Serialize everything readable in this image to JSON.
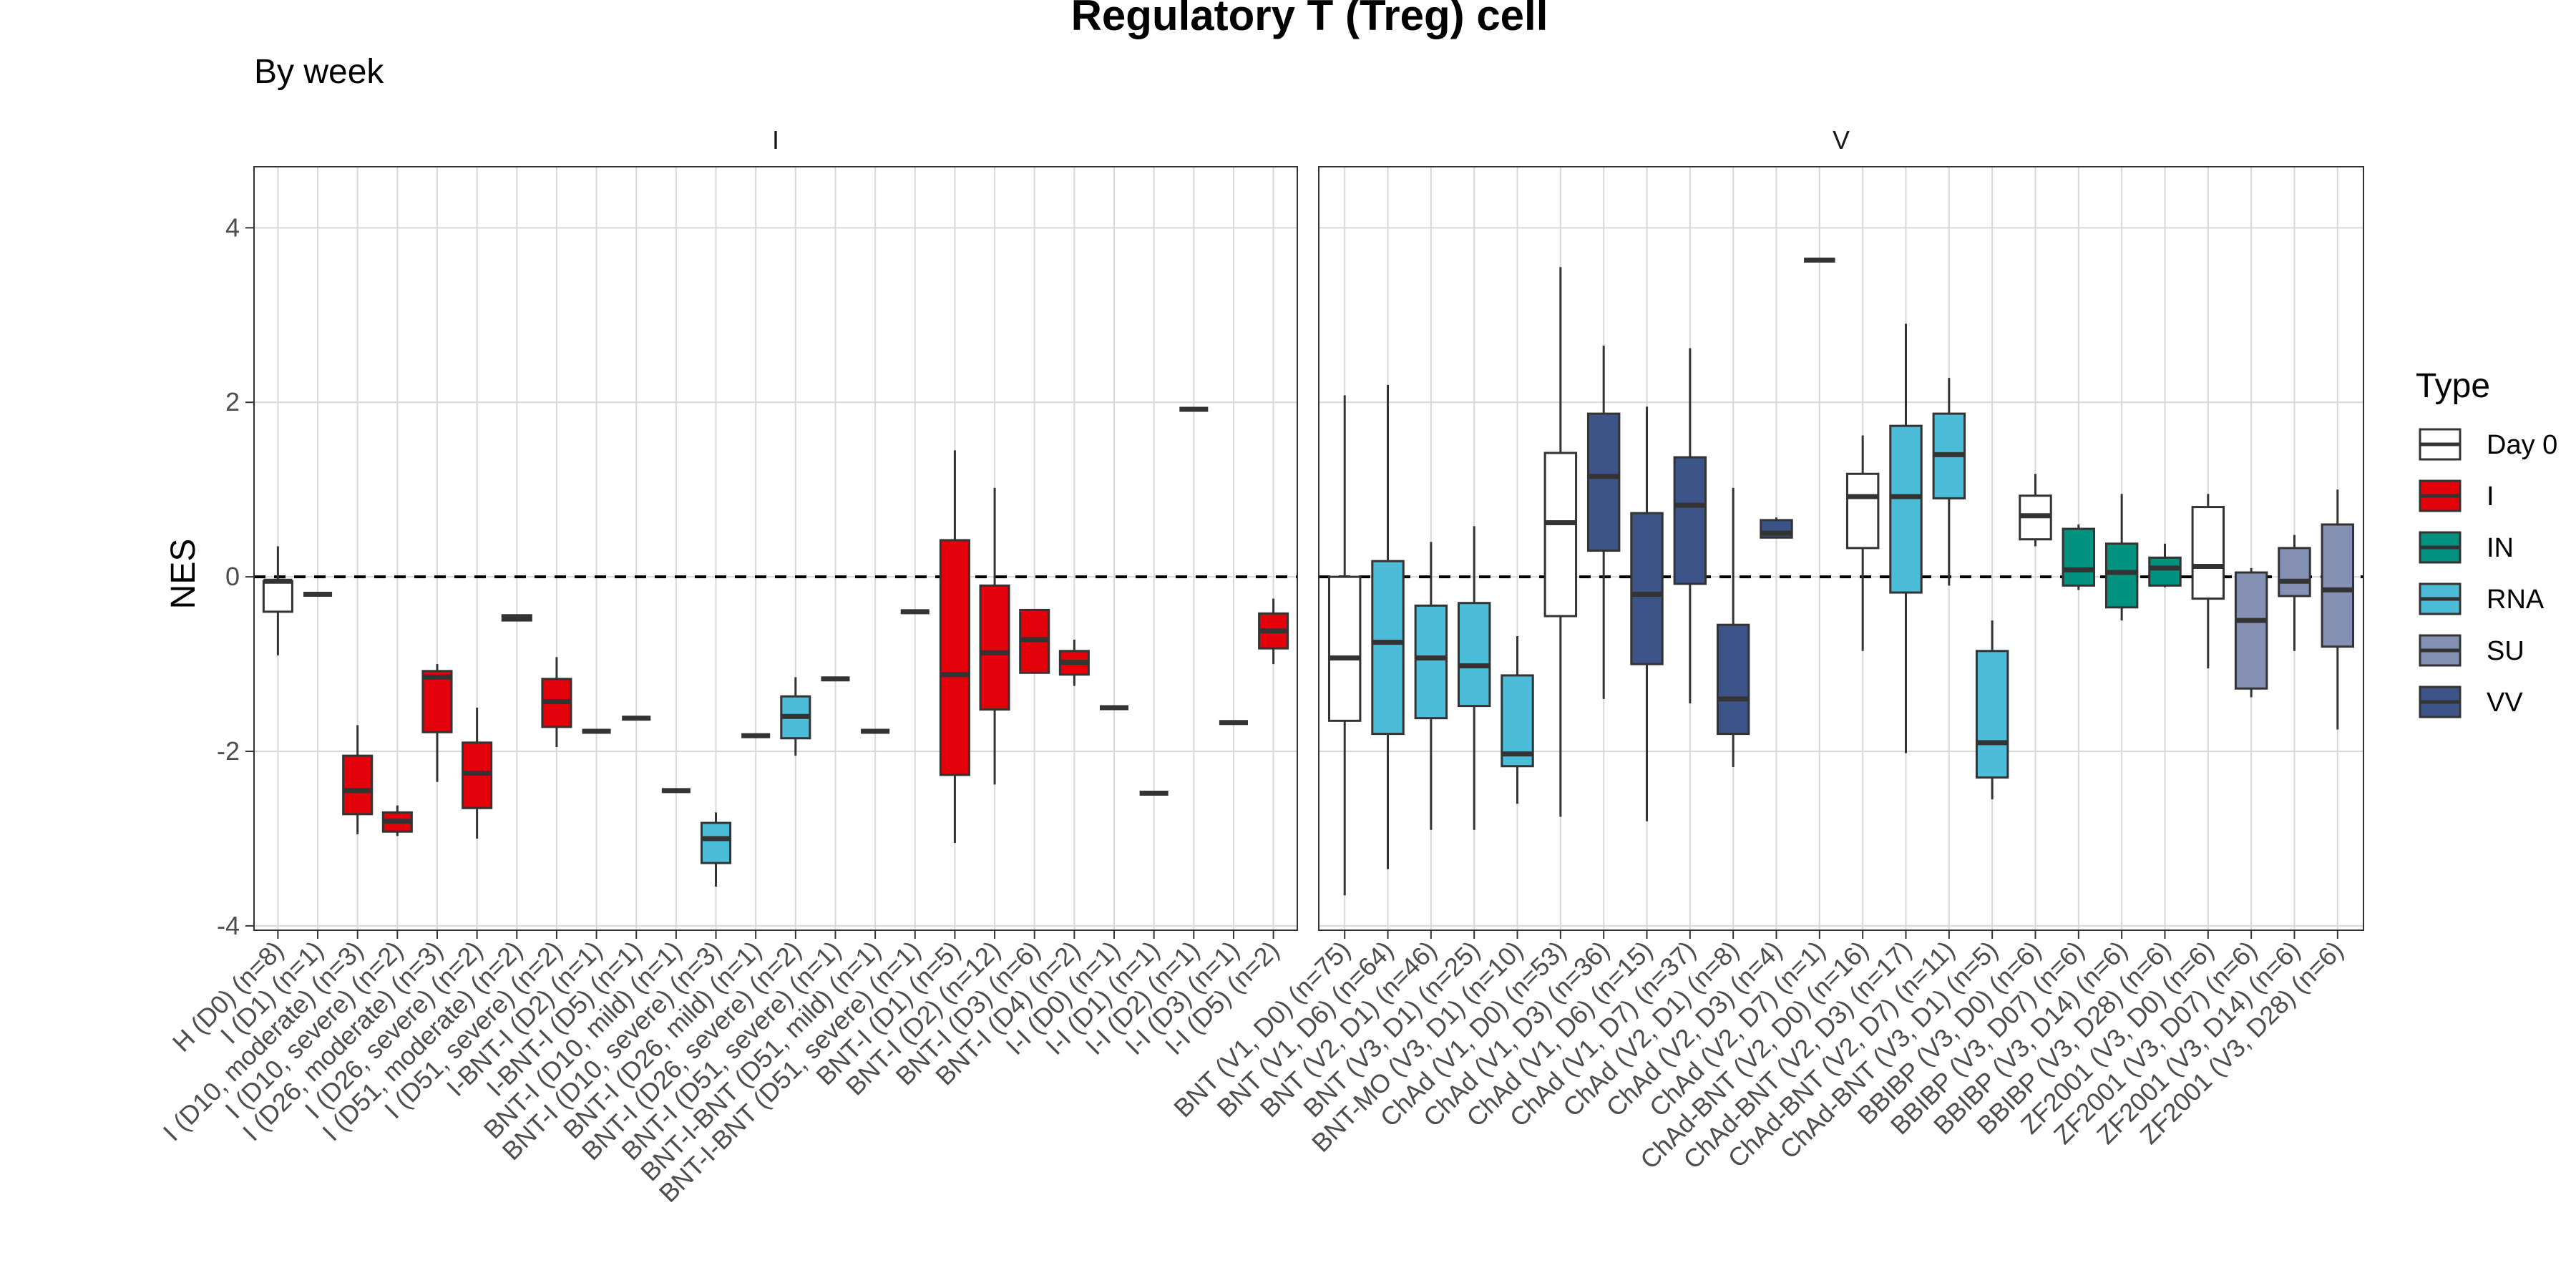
{
  "chart_data": {
    "type": "box",
    "title": "Regulatory T (Treg) cell",
    "subtitle": "By week",
    "ylabel": "NES",
    "xlabel": "",
    "ylim": [
      -4.05,
      4.7
    ],
    "yticks": [
      -4,
      -2,
      0,
      2,
      4
    ],
    "reference_line": 0,
    "grid": true,
    "legend": {
      "title": "Type",
      "position": "right",
      "items": [
        {
          "label": "Day 0",
          "color": "#ffffff"
        },
        {
          "label": "I",
          "color": "#e3020a"
        },
        {
          "label": "IN",
          "color": "#01917f"
        },
        {
          "label": "RNA",
          "color": "#4cbcd8"
        },
        {
          "label": "SU",
          "color": "#8491b4"
        },
        {
          "label": "VV",
          "color": "#3c5488"
        }
      ]
    },
    "panels": [
      {
        "strip": "I",
        "categories": [
          {
            "label": "H (D0) (n=8)",
            "type": "Day 0",
            "q1": -0.4,
            "median": -0.05,
            "q3": -0.05,
            "lo": -0.9,
            "hi": 0.35
          },
          {
            "label": "I (D1) (n=1)",
            "type": "I",
            "median": -0.2
          },
          {
            "label": "I (D10, moderate) (n=3)",
            "type": "I",
            "q1": -2.72,
            "median": -2.45,
            "q3": -2.05,
            "lo": -2.95,
            "hi": -1.7
          },
          {
            "label": "I (D10, severe) (n=2)",
            "type": "I",
            "q1": -2.92,
            "median": -2.8,
            "q3": -2.7,
            "lo": -2.97,
            "hi": -2.62
          },
          {
            "label": "I (D26, moderate) (n=3)",
            "type": "I",
            "q1": -1.78,
            "median": -1.15,
            "q3": -1.08,
            "lo": -2.35,
            "hi": -1.0
          },
          {
            "label": "I (D26, severe) (n=2)",
            "type": "I",
            "q1": -2.65,
            "median": -2.25,
            "q3": -1.9,
            "lo": -3.0,
            "hi": -1.5
          },
          {
            "label": "I (D51, moderate) (n=2)",
            "type": "I",
            "q1": -0.5,
            "median": -0.47,
            "q3": -0.44,
            "lo": -0.5,
            "hi": -0.44
          },
          {
            "label": "I (D51, severe) (n=2)",
            "type": "I",
            "q1": -1.72,
            "median": -1.43,
            "q3": -1.17,
            "lo": -1.95,
            "hi": -0.92
          },
          {
            "label": "I-BNT-I (D2) (n=1)",
            "type": "I",
            "median": -1.77
          },
          {
            "label": "I-BNT-I (D5) (n=1)",
            "type": "I",
            "median": -1.62
          },
          {
            "label": "BNT-I (D10, mild) (n=1)",
            "type": "I",
            "median": -2.45
          },
          {
            "label": "BNT-I (D10, severe) (n=3)",
            "type": "RNA",
            "q1": -3.28,
            "median": -3.0,
            "q3": -2.82,
            "lo": -3.55,
            "hi": -2.7
          },
          {
            "label": "BNT-I (D26, mild) (n=1)",
            "type": "I",
            "median": -1.82
          },
          {
            "label": "BNT-I (D26, severe) (n=2)",
            "type": "RNA",
            "q1": -1.85,
            "median": -1.6,
            "q3": -1.37,
            "lo": -2.05,
            "hi": -1.15
          },
          {
            "label": "BNT-I (D51, severe) (n=1)",
            "type": "I",
            "median": -1.17
          },
          {
            "label": "BNT-I-BNT (D51, mild) (n=1)",
            "type": "I",
            "median": -1.77
          },
          {
            "label": "BNT-I-BNT (D51, severe) (n=1)",
            "type": "I",
            "median": -0.4
          },
          {
            "label": "BNT-I (D1) (n=5)",
            "type": "I",
            "q1": -2.27,
            "median": -1.12,
            "q3": 0.42,
            "lo": -3.05,
            "hi": 1.45
          },
          {
            "label": "BNT-I (D2) (n=12)",
            "type": "I",
            "q1": -1.52,
            "median": -0.87,
            "q3": -0.1,
            "lo": -2.38,
            "hi": 1.02
          },
          {
            "label": "BNT-I (D3) (n=6)",
            "type": "I",
            "q1": -1.1,
            "median": -0.72,
            "q3": -0.38,
            "lo": -1.1,
            "hi": -0.38
          },
          {
            "label": "BNT-I (D4) (n=2)",
            "type": "I",
            "q1": -1.12,
            "median": -0.98,
            "q3": -0.85,
            "lo": -1.25,
            "hi": -0.72
          },
          {
            "label": "I-I (D0) (n=1)",
            "type": "I",
            "median": -1.5
          },
          {
            "label": "I-I (D1) (n=1)",
            "type": "I",
            "median": -2.48
          },
          {
            "label": "I-I (D2) (n=1)",
            "type": "I",
            "median": 1.92
          },
          {
            "label": "I-I (D3) (n=1)",
            "type": "I",
            "median": -1.67
          },
          {
            "label": "I-I (D5) (n=2)",
            "type": "I",
            "q1": -0.82,
            "median": -0.62,
            "q3": -0.42,
            "lo": -1.0,
            "hi": -0.25
          }
        ]
      },
      {
        "strip": "V",
        "categories": [
          {
            "label": "BNT (V1, D0) (n=75)",
            "type": "Day 0",
            "q1": -1.65,
            "median": -0.93,
            "q3": 0.0,
            "lo": -3.65,
            "hi": 2.08
          },
          {
            "label": "BNT (V1, D6) (n=64)",
            "type": "RNA",
            "q1": -1.8,
            "median": -0.75,
            "q3": 0.18,
            "lo": -3.35,
            "hi": 2.2
          },
          {
            "label": "BNT (V2, D1) (n=46)",
            "type": "RNA",
            "q1": -1.62,
            "median": -0.93,
            "q3": -0.33,
            "lo": -2.9,
            "hi": 0.4
          },
          {
            "label": "BNT (V3, D1) (n=25)",
            "type": "RNA",
            "q1": -1.48,
            "median": -1.02,
            "q3": -0.3,
            "lo": -2.9,
            "hi": 0.58
          },
          {
            "label": "BNT-MO (V3, D1) (n=10)",
            "type": "RNA",
            "q1": -2.17,
            "median": -2.03,
            "q3": -1.13,
            "lo": -2.6,
            "hi": -0.68
          },
          {
            "label": "ChAd (V1, D0) (n=53)",
            "type": "Day 0",
            "q1": -0.45,
            "median": 0.62,
            "q3": 1.42,
            "lo": -2.75,
            "hi": 3.55
          },
          {
            "label": "ChAd (V1, D3) (n=36)",
            "type": "VV",
            "q1": 0.3,
            "median": 1.15,
            "q3": 1.87,
            "lo": -1.4,
            "hi": 2.65
          },
          {
            "label": "ChAd (V1, D6) (n=15)",
            "type": "VV",
            "q1": -1.0,
            "median": -0.2,
            "q3": 0.73,
            "lo": -2.8,
            "hi": 1.95
          },
          {
            "label": "ChAd (V1, D7) (n=37)",
            "type": "VV",
            "q1": -0.08,
            "median": 0.82,
            "q3": 1.37,
            "lo": -1.45,
            "hi": 2.62
          },
          {
            "label": "ChAd (V2, D1) (n=8)",
            "type": "VV",
            "q1": -1.8,
            "median": -1.4,
            "q3": -0.55,
            "lo": -2.18,
            "hi": 1.02
          },
          {
            "label": "ChAd (V2, D3) (n=4)",
            "type": "VV",
            "q1": 0.45,
            "median": 0.5,
            "q3": 0.65,
            "lo": 0.45,
            "hi": 0.68
          },
          {
            "label": "ChAd (V2, D7) (n=1)",
            "type": "VV",
            "median": 3.63
          },
          {
            "label": "ChAd-BNT (V2, D0) (n=16)",
            "type": "Day 0",
            "q1": 0.33,
            "median": 0.92,
            "q3": 1.18,
            "lo": -0.85,
            "hi": 1.62
          },
          {
            "label": "ChAd-BNT (V2, D3) (n=17)",
            "type": "RNA",
            "q1": -0.18,
            "median": 0.92,
            "q3": 1.73,
            "lo": -2.02,
            "hi": 2.9
          },
          {
            "label": "ChAd-BNT (V2, D7) (n=11)",
            "type": "RNA",
            "q1": 0.9,
            "median": 1.4,
            "q3": 1.87,
            "lo": -0.1,
            "hi": 2.28
          },
          {
            "label": "ChAd-BNT (V3, D1) (n=5)",
            "type": "RNA",
            "q1": -2.3,
            "median": -1.9,
            "q3": -0.85,
            "lo": -2.55,
            "hi": -0.5
          },
          {
            "label": "BBIBP (V3, D0) (n=6)",
            "type": "Day 0",
            "q1": 0.43,
            "median": 0.7,
            "q3": 0.93,
            "lo": 0.35,
            "hi": 1.18
          },
          {
            "label": "BBIBP (V3, D07) (n=6)",
            "type": "IN",
            "q1": -0.1,
            "median": 0.08,
            "q3": 0.55,
            "lo": -0.15,
            "hi": 0.6
          },
          {
            "label": "BBIBP (V3, D14) (n=6)",
            "type": "IN",
            "q1": -0.35,
            "median": 0.05,
            "q3": 0.38,
            "lo": -0.5,
            "hi": 0.95
          },
          {
            "label": "BBIBP (V3, D28) (n=6)",
            "type": "IN",
            "q1": -0.1,
            "median": 0.1,
            "q3": 0.22,
            "lo": -0.12,
            "hi": 0.38
          },
          {
            "label": "ZF2001 (V3, D0) (n=6)",
            "type": "Day 0",
            "q1": -0.25,
            "median": 0.12,
            "q3": 0.8,
            "lo": -1.05,
            "hi": 0.95
          },
          {
            "label": "ZF2001 (V3, D07) (n=6)",
            "type": "SU",
            "q1": -1.28,
            "median": -0.5,
            "q3": 0.05,
            "lo": -1.38,
            "hi": 0.1
          },
          {
            "label": "ZF2001 (V3, D14) (n=6)",
            "type": "SU",
            "q1": -0.22,
            "median": -0.05,
            "q3": 0.33,
            "lo": -0.85,
            "hi": 0.48
          },
          {
            "label": "ZF2001 (V3, D28) (n=6)",
            "type": "SU",
            "q1": -0.8,
            "median": -0.15,
            "q3": 0.6,
            "lo": -1.75,
            "hi": 1.0
          }
        ]
      }
    ]
  }
}
